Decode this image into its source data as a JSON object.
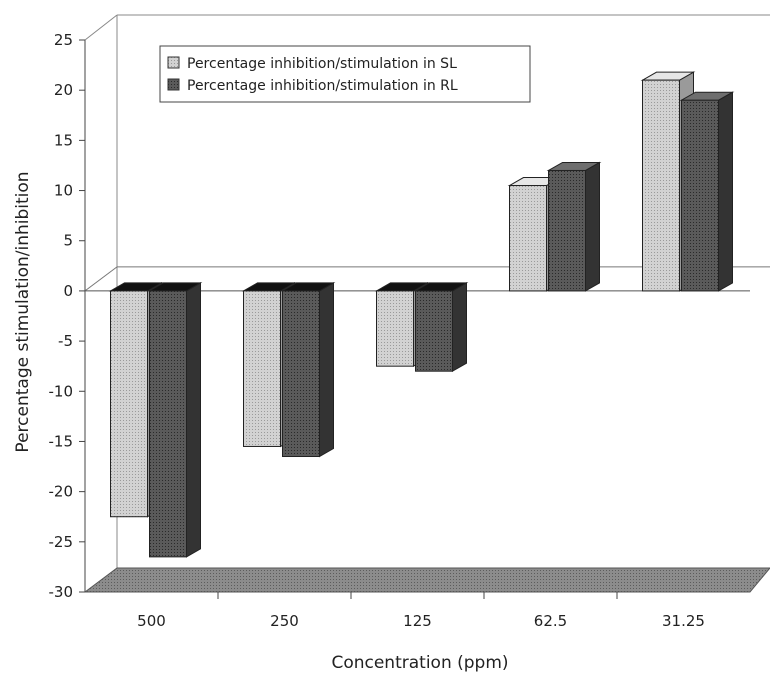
{
  "chart_data": {
    "type": "bar",
    "title": "",
    "xlabel": "Concentration (ppm)",
    "ylabel": "Percentage stimulation/inhibition",
    "categories": [
      "500",
      "250",
      "125",
      "62.5",
      "31.25"
    ],
    "series": [
      {
        "name": "Percentage inhibition/stimulation in SL",
        "values": [
          -22.5,
          -15.5,
          -7.5,
          10.5,
          21.0
        ],
        "color": "#c8c8c8"
      },
      {
        "name": "Percentage inhibition/stimulation in RL",
        "values": [
          -26.5,
          -16.5,
          -8.0,
          12.0,
          19.0
        ],
        "color": "#555555"
      }
    ],
    "ylim": [
      -30,
      25
    ],
    "yticks": [
      "25",
      "20",
      "15",
      "10",
      "5",
      "0",
      "-5",
      "-10",
      "-15",
      "-20",
      "-25",
      "-30"
    ],
    "grid": false,
    "legend_position": "top-left",
    "style": "3d"
  }
}
